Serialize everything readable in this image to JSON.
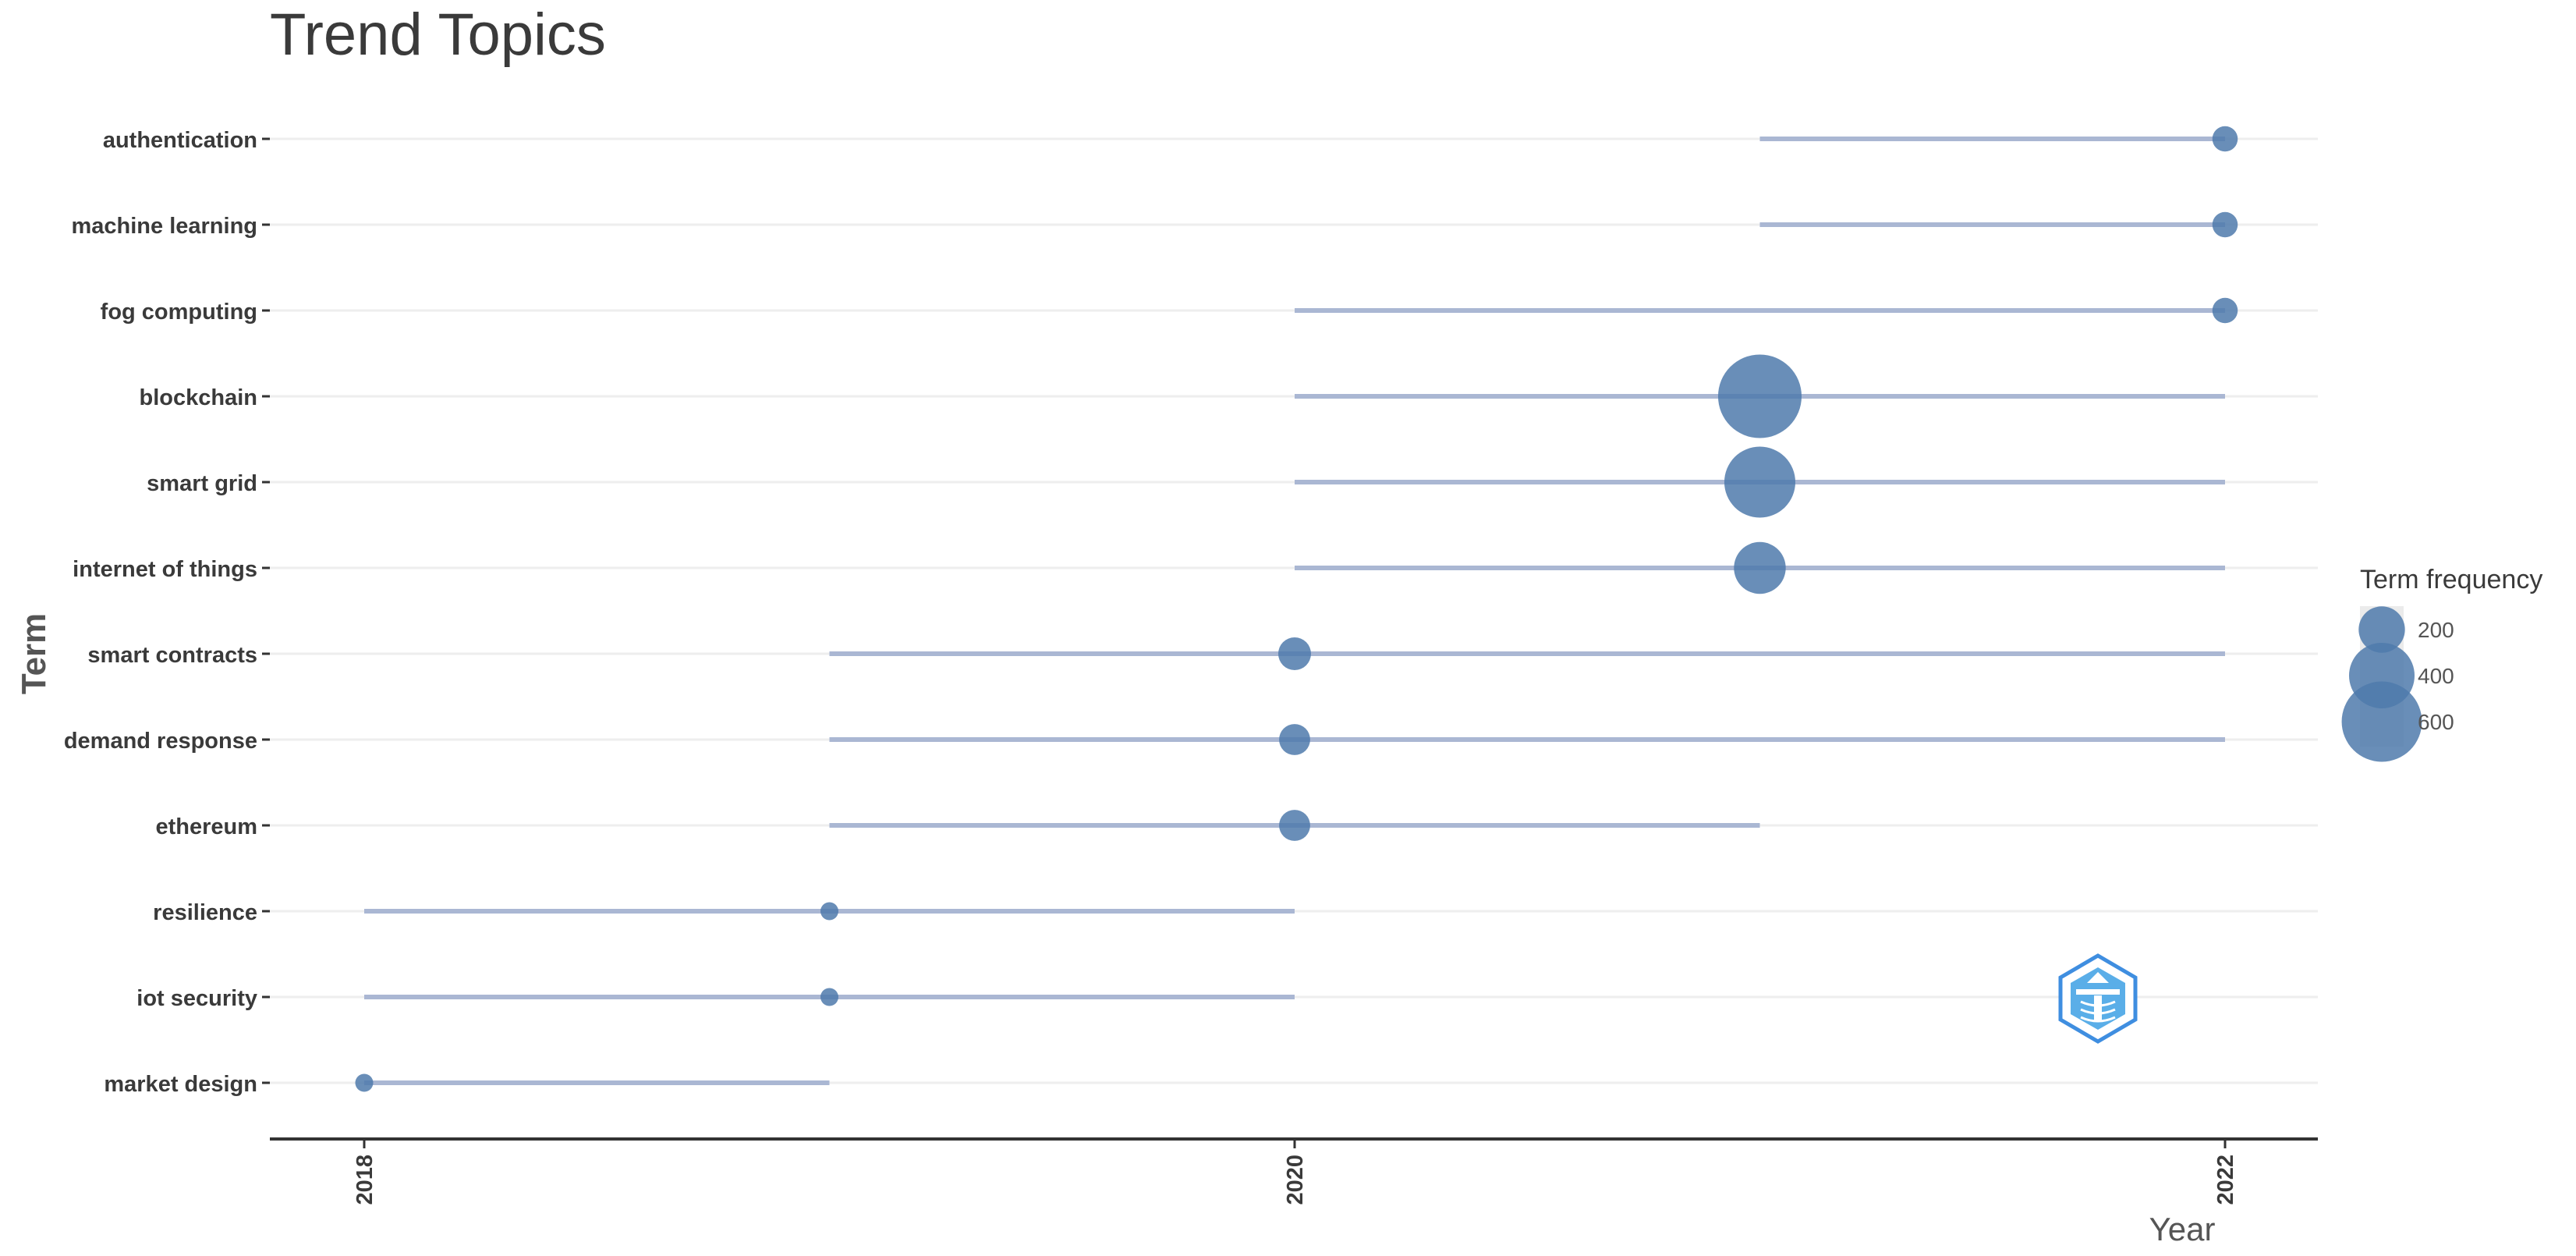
{
  "chart_data": {
    "type": "scatter",
    "title": "Trend Topics",
    "xlabel": "Year",
    "ylabel": "Term",
    "xlim": [
      2017.9,
      2022.1
    ],
    "x_ticks": [
      2018,
      2020,
      2022
    ],
    "grid": true,
    "legend": {
      "title": "Term frequency",
      "position": "right",
      "items": [
        {
          "label": "200",
          "value": 200
        },
        {
          "label": "400",
          "value": 400
        },
        {
          "label": "600",
          "value": 600
        }
      ]
    },
    "colors": {
      "point": "#4f7aab",
      "range_line": "#aab7d3",
      "grid": "#eeeeee",
      "axis": "#333333"
    },
    "terms": [
      {
        "term": "authentication",
        "year_q1": 2021,
        "year_median": 2022,
        "year_q3": 2022,
        "freq": 60
      },
      {
        "term": "machine learning",
        "year_q1": 2021,
        "year_median": 2022,
        "year_q3": 2022,
        "freq": 60
      },
      {
        "term": "fog computing",
        "year_q1": 2020,
        "year_median": 2022,
        "year_q3": 2022,
        "freq": 60
      },
      {
        "term": "blockchain",
        "year_q1": 2020,
        "year_median": 2021,
        "year_q3": 2022,
        "freq": 650
      },
      {
        "term": "smart grid",
        "year_q1": 2020,
        "year_median": 2021,
        "year_q3": 2022,
        "freq": 470
      },
      {
        "term": "internet of things",
        "year_q1": 2020,
        "year_median": 2021,
        "year_q3": 2022,
        "freq": 250
      },
      {
        "term": "smart contracts",
        "year_q1": 2019,
        "year_median": 2020,
        "year_q3": 2022,
        "freq": 100
      },
      {
        "term": "demand response",
        "year_q1": 2019,
        "year_median": 2020,
        "year_q3": 2022,
        "freq": 90
      },
      {
        "term": "ethereum",
        "year_q1": 2019,
        "year_median": 2020,
        "year_q3": 2021,
        "freq": 90
      },
      {
        "term": "resilience",
        "year_q1": 2018,
        "year_median": 2019,
        "year_q3": 2020,
        "freq": 30
      },
      {
        "term": "iot security",
        "year_q1": 2018,
        "year_median": 2019,
        "year_q3": 2020,
        "freq": 30
      },
      {
        "term": "market design",
        "year_q1": 2018,
        "year_median": 2018,
        "year_q3": 2019,
        "freq": 30
      }
    ]
  },
  "watermark": {
    "icon": "bibliometrix-logo-icon"
  }
}
